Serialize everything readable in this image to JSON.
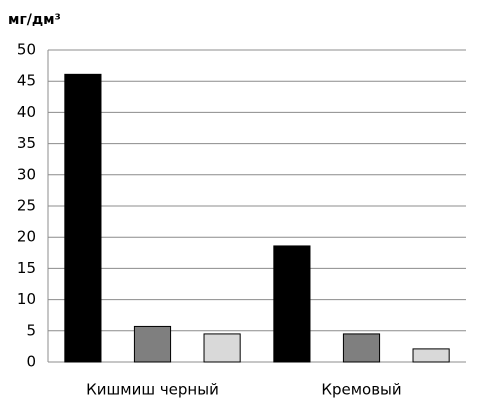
{
  "chart_data": {
    "type": "bar",
    "y_label": "мг/дм³",
    "categories": [
      "Кишмиш черный",
      "Кремовый"
    ],
    "series": [
      {
        "color": "#000000",
        "values": [
          46.1,
          18.6
        ]
      },
      {
        "color": "#7f7f7f",
        "values": [
          5.7,
          4.5
        ]
      },
      {
        "color": "#d9d9d9",
        "values": [
          4.5,
          2.1
        ]
      }
    ],
    "ylim": [
      0,
      50
    ],
    "yticks": [
      0,
      5,
      10,
      15,
      20,
      25,
      30,
      35,
      40,
      45,
      50
    ],
    "grid": true
  }
}
